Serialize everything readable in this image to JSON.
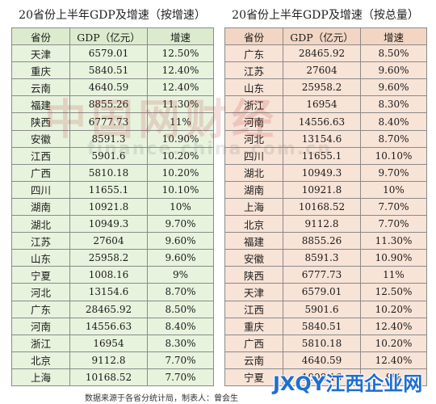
{
  "left_table": {
    "title": "20省份上半年GDP及增速（按增速）",
    "headers": [
      "省份",
      "GDP（亿元）",
      "增速"
    ],
    "rows": [
      [
        "天津",
        "6579.01",
        "12.50%"
      ],
      [
        "重庆",
        "5840.51",
        "12.40%"
      ],
      [
        "云南",
        "4640.59",
        "12.40%"
      ],
      [
        "福建",
        "8855.26",
        "11.30%"
      ],
      [
        "陕西",
        "6777.73",
        "11%"
      ],
      [
        "安徽",
        "8591.3",
        "10.90%"
      ],
      [
        "江西",
        "5901.6",
        "10.20%"
      ],
      [
        "广西",
        "5810.18",
        "10.20%"
      ],
      [
        "四川",
        "11655.1",
        "10.10%"
      ],
      [
        "湖南",
        "10921.8",
        "10%"
      ],
      [
        "湖北",
        "10949.3",
        "9.70%"
      ],
      [
        "江苏",
        "27604",
        "9.60%"
      ],
      [
        "山东",
        "25958.2",
        "9.60%"
      ],
      [
        "宁夏",
        "1008.16",
        "9%"
      ],
      [
        "河北",
        "13154.6",
        "8.70%"
      ],
      [
        "广东",
        "28465.92",
        "8.50%"
      ],
      [
        "河南",
        "14556.63",
        "8.40%"
      ],
      [
        "浙江",
        "16954",
        "8.30%"
      ],
      [
        "北京",
        "9112.8",
        "7.70%"
      ],
      [
        "上海",
        "10168.52",
        "7.70%"
      ]
    ]
  },
  "right_table": {
    "title": "20省份上半年GDP及增速（按总量）",
    "headers": [
      "省份",
      "GDP（亿元）",
      "增速"
    ],
    "rows": [
      [
        "广东",
        "28465.92",
        "8.50%"
      ],
      [
        "江苏",
        "27604",
        "9.60%"
      ],
      [
        "山东",
        "25958.2",
        "9.60%"
      ],
      [
        "浙江",
        "16954",
        "8.30%"
      ],
      [
        "河南",
        "14556.63",
        "8.40%"
      ],
      [
        "河北",
        "13154.6",
        "8.70%"
      ],
      [
        "四川",
        "11655.1",
        "10.10%"
      ],
      [
        "湖北",
        "10949.3",
        "9.70%"
      ],
      [
        "湖南",
        "10921.8",
        "10%"
      ],
      [
        "上海",
        "10168.52",
        "7.70%"
      ],
      [
        "北京",
        "9112.8",
        "7.70%"
      ],
      [
        "福建",
        "8855.26",
        "11.30%"
      ],
      [
        "安徽",
        "8591.3",
        "10.90%"
      ],
      [
        "陕西",
        "6777.73",
        "11%"
      ],
      [
        "天津",
        "6579.01",
        "12.50%"
      ],
      [
        "江西",
        "5901.6",
        "10.20%"
      ],
      [
        "重庆",
        "5840.51",
        "12.40%"
      ],
      [
        "广西",
        "5810.18",
        "10.20%"
      ],
      [
        "云南",
        "4640.59",
        "12.40%"
      ],
      [
        "宁夏",
        "1008.16",
        "9%"
      ]
    ]
  },
  "watermark": {
    "text": "中国网财经",
    "url": "finance.china.com.cn"
  },
  "footer": {
    "note": "数据来源于各省分统计局，制表人：曾会生"
  },
  "logo": {
    "text": "JXQY江西企业网"
  },
  "colors": {
    "left_bg": "#e8f3de",
    "right_bg": "#f8e3d7",
    "border": "#8a8a8a",
    "logo_blue": "#1e6fd0"
  }
}
